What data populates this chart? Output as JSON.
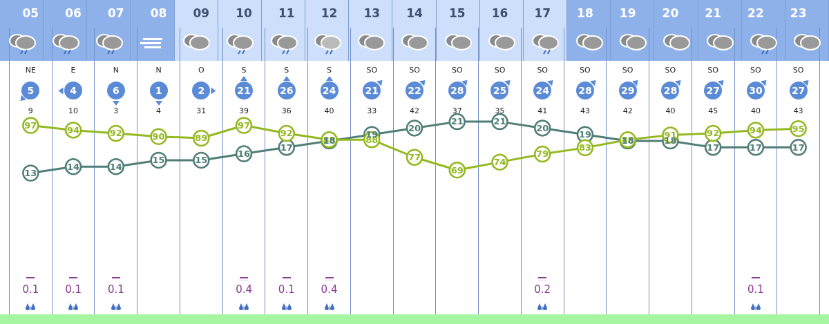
{
  "chart_data": {
    "type": "line",
    "categories": [
      "05",
      "06",
      "07",
      "08",
      "09",
      "10",
      "11",
      "12",
      "13",
      "14",
      "15",
      "16",
      "17",
      "18",
      "19",
      "20",
      "21",
      "22",
      "23"
    ],
    "series": [
      {
        "color": "#94b820",
        "values": [
          97,
          94,
          92,
          90,
          89,
          97,
          92,
          88,
          88,
          77,
          69,
          74,
          79,
          83,
          88,
          91,
          92,
          94,
          95
        ]
      },
      {
        "color": "#4f7d78",
        "axis": "y2",
        "values": [
          13,
          14,
          14,
          15,
          15,
          16,
          17,
          18,
          19,
          20,
          21,
          21,
          20,
          19,
          18,
          18,
          17,
          17,
          17
        ]
      },
      {
        "type": "bar",
        "color": "#8a3b94",
        "values": [
          0.1,
          0.1,
          0.1,
          null,
          null,
          0.4,
          0.1,
          0.4,
          null,
          null,
          null,
          null,
          0.2,
          null,
          null,
          null,
          null,
          0.1,
          null
        ],
        "value_labels": [
          "0.1",
          "0.1",
          "0.1",
          null,
          null,
          "0.4",
          "0.1",
          "0.4",
          null,
          null,
          null,
          null,
          "0.2",
          null,
          null,
          null,
          null,
          "0.1",
          null
        ]
      }
    ],
    "ylim": [
      -21.4,
      158.1
    ],
    "y2lim": [
      -9,
      35.6
    ],
    "data_labels": true,
    "marker": "circle",
    "grid": "x",
    "legend": false,
    "tick_labels": "x",
    "annotations": [
      "NE",
      "E",
      "N",
      "N",
      "O",
      "S",
      "S",
      "S",
      "SO",
      "SO",
      "SO",
      "SO",
      "SO",
      "SO",
      "SO",
      "SO",
      "SO",
      "SO",
      "SO",
      "5",
      "4",
      "6",
      "1",
      "2",
      "21",
      "26",
      "24",
      "21",
      "22",
      "28",
      "25",
      "24",
      "28",
      "29",
      "28",
      "27",
      "30",
      "27",
      "9",
      "10",
      "3",
      "4",
      "31",
      "39",
      "36",
      "40",
      "33",
      "42",
      "37",
      "35",
      "41",
      "43",
      "42",
      "40",
      "45",
      "40",
      "43"
    ]
  }
}
